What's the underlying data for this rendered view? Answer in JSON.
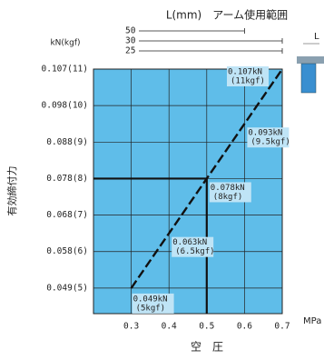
{
  "chart_data": {
    "type": "line",
    "range_title": "L(mm)　アーム使用範囲",
    "y_unit": "kN(kgf)",
    "ylabel": "有効締付力",
    "xlabel": "空　圧",
    "x_unit": "MPa",
    "diagram_label": "L",
    "xlim": [
      0.2,
      0.7
    ],
    "xticks": [
      0.3,
      0.4,
      0.5,
      0.6,
      0.7
    ],
    "ylim": [
      4.3,
      11
    ],
    "yticks": [
      {
        "value": 5,
        "label": "0.049(5)"
      },
      {
        "value": 6,
        "label": "0.058(6)"
      },
      {
        "value": 7,
        "label": "0.068(7)"
      },
      {
        "value": 8,
        "label": "0.078(8)"
      },
      {
        "value": 9,
        "label": "0.088(9)"
      },
      {
        "value": 10,
        "label": "0.098(10)"
      },
      {
        "value": 11,
        "label": "0.107(11)"
      }
    ],
    "grid": true,
    "x": [
      0.3,
      0.4,
      0.5,
      0.6,
      0.7
    ],
    "series": [
      {
        "color": "#111111",
        "values": [
          5,
          6.5,
          8,
          9.5,
          11
        ]
      }
    ],
    "annotations": [
      [
        "0.049kN",
        "(5kgf)"
      ],
      [
        "0.063kN",
        "(6.5kgf)"
      ],
      [
        "0.078kN",
        "(8kgf)"
      ],
      [
        "0.093kN",
        "(9.5kgf)"
      ],
      [
        "0.107kN",
        "(11kgf)"
      ]
    ],
    "arm_ranges": [
      {
        "label": "50",
        "max": 0.6
      },
      {
        "label": "30",
        "max": 0.7
      },
      {
        "label": "25",
        "max": 0.7
      }
    ]
  }
}
